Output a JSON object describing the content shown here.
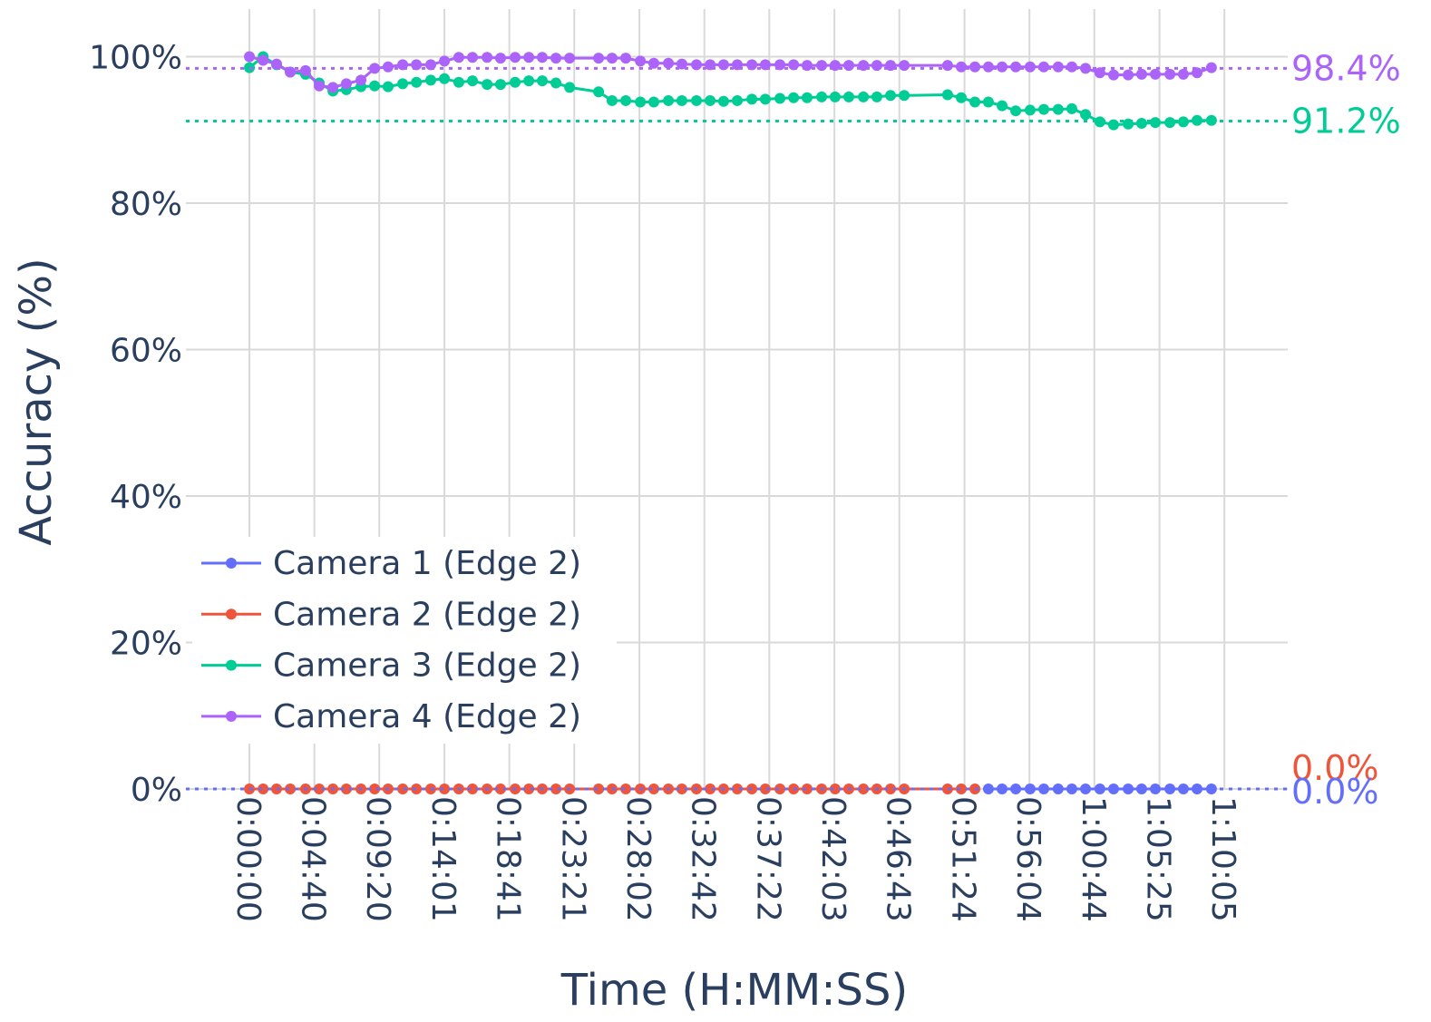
{
  "chart_data": {
    "type": "line",
    "xlabel": "Time (H:MM:SS)",
    "ylabel": "Accuracy (%)",
    "x": [
      0,
      59,
      117,
      176,
      242,
      301,
      360,
      418,
      481,
      540,
      598,
      661,
      720,
      782,
      841,
      903,
      962,
      1025,
      1083,
      1146,
      1205,
      1263,
      1322,
      1381,
      1506,
      1564,
      1623,
      1686,
      1744,
      1807,
      1865,
      1928,
      1987,
      2045,
      2104,
      2167,
      2225,
      2288,
      2347,
      2405,
      2468,
      2526,
      2585,
      2648,
      2706,
      2765,
      2824,
      3011,
      3070,
      3129,
      3187,
      3246,
      3305,
      3367,
      3426,
      3488,
      3547,
      3606,
      3668,
      3727,
      3790,
      3848,
      3907,
      3970,
      4028,
      4087,
      4149
    ],
    "series": [
      {
        "name": "Camera 1 (Edge 2)",
        "color": "#636efa",
        "values": [
          null,
          null,
          null,
          null,
          null,
          null,
          null,
          null,
          null,
          null,
          null,
          null,
          null,
          null,
          null,
          null,
          null,
          null,
          null,
          null,
          null,
          null,
          null,
          null,
          null,
          null,
          null,
          null,
          null,
          null,
          null,
          null,
          null,
          null,
          null,
          null,
          null,
          null,
          null,
          null,
          null,
          null,
          null,
          null,
          null,
          null,
          null,
          null,
          null,
          null,
          0,
          0,
          0,
          0,
          0,
          0,
          0,
          0,
          0,
          0,
          0,
          0,
          0,
          0,
          0,
          0,
          0
        ]
      },
      {
        "name": "Camera 2 (Edge 2)",
        "color": "#ef553b",
        "values": [
          0,
          0,
          0,
          0,
          0,
          0,
          0,
          0,
          0,
          0,
          0,
          0,
          0,
          0,
          0,
          0,
          0,
          0,
          0,
          0,
          0,
          0,
          0,
          0,
          0,
          0,
          0,
          0,
          0,
          0,
          0,
          0,
          0,
          0,
          0,
          0,
          0,
          0,
          0,
          0,
          0,
          0,
          0,
          0,
          0,
          0,
          0,
          0,
          0,
          0,
          null,
          null,
          null,
          null,
          null,
          null,
          null,
          null,
          null,
          null,
          null,
          null,
          null,
          null,
          null,
          null,
          null
        ]
      },
      {
        "name": "Camera 3 (Edge 2)",
        "color": "#00cc96",
        "values": [
          98.5,
          100,
          98.9,
          97.9,
          97.6,
          96.4,
          95.3,
          95.5,
          95.9,
          96,
          95.9,
          96.3,
          96.5,
          96.8,
          97,
          96.5,
          96.7,
          96.2,
          96.2,
          96.5,
          96.7,
          96.7,
          96.4,
          95.8,
          95.2,
          94,
          94,
          93.8,
          93.8,
          94,
          94,
          94,
          94,
          93.9,
          94,
          94.2,
          94.2,
          94.3,
          94.4,
          94.4,
          94.5,
          94.5,
          94.5,
          94.5,
          94.5,
          94.7,
          94.7,
          94.8,
          94.4,
          93.8,
          93.8,
          93.3,
          92.6,
          92.7,
          92.8,
          92.8,
          92.9,
          92.1,
          91.1,
          90.7,
          90.8,
          90.9,
          91,
          91,
          91.1,
          91.3,
          91.3
        ]
      },
      {
        "name": "Camera 4 (Edge 2)",
        "color": "#ab63fa",
        "values": [
          100,
          99.5,
          99,
          97.9,
          98.1,
          96,
          95.8,
          96.3,
          96.8,
          98.4,
          98.6,
          98.9,
          98.9,
          98.9,
          99.4,
          99.9,
          99.9,
          99.9,
          99.8,
          99.9,
          99.9,
          99.9,
          99.8,
          99.8,
          99.8,
          99.8,
          99.8,
          99.4,
          99.1,
          99.1,
          99,
          98.9,
          98.9,
          98.9,
          98.9,
          98.9,
          98.9,
          98.9,
          98.9,
          98.8,
          98.8,
          98.8,
          98.8,
          98.8,
          98.8,
          98.8,
          98.8,
          98.8,
          98.6,
          98.6,
          98.6,
          98.6,
          98.6,
          98.6,
          98.6,
          98.6,
          98.6,
          98.4,
          97.8,
          97.5,
          97.5,
          97.6,
          97.6,
          97.6,
          97.6,
          97.8,
          98.5
        ]
      }
    ],
    "reference_lines": [
      {
        "value": 98.4,
        "label": "98.4%",
        "color": "#ab63fa"
      },
      {
        "value": 91.2,
        "label": "91.2%",
        "color": "#00cc96"
      },
      {
        "value": 0,
        "label": "0.0%",
        "color": "#ef553b"
      },
      {
        "value": 0,
        "label": "0.0%",
        "color": "#636efa"
      }
    ],
    "xlim": [
      -274,
      4478
    ],
    "ylim": [
      0,
      106.5
    ],
    "xticks": [
      {
        "value": 0,
        "label": "0:00:00"
      },
      {
        "value": 280,
        "label": "0:04:40"
      },
      {
        "value": 560,
        "label": "0:09:20"
      },
      {
        "value": 841,
        "label": "0:14:01"
      },
      {
        "value": 1121,
        "label": "0:18:41"
      },
      {
        "value": 1401,
        "label": "0:23:21"
      },
      {
        "value": 1682,
        "label": "0:28:02"
      },
      {
        "value": 1962,
        "label": "0:32:42"
      },
      {
        "value": 2242,
        "label": "0:37:22"
      },
      {
        "value": 2523,
        "label": "0:42:03"
      },
      {
        "value": 2803,
        "label": "0:46:43"
      },
      {
        "value": 3084,
        "label": "0:51:24"
      },
      {
        "value": 3364,
        "label": "0:56:04"
      },
      {
        "value": 3644,
        "label": "1:00:44"
      },
      {
        "value": 3925,
        "label": "1:05:25"
      },
      {
        "value": 4205,
        "label": "1:10:05"
      }
    ],
    "yticks": [
      {
        "value": 0,
        "label": "0%"
      },
      {
        "value": 20,
        "label": "20%"
      },
      {
        "value": 40,
        "label": "40%"
      },
      {
        "value": 60,
        "label": "60%"
      },
      {
        "value": 80,
        "label": "80%"
      },
      {
        "value": 100,
        "label": "100%"
      }
    ],
    "grid": true,
    "legend": "lower-left"
  }
}
